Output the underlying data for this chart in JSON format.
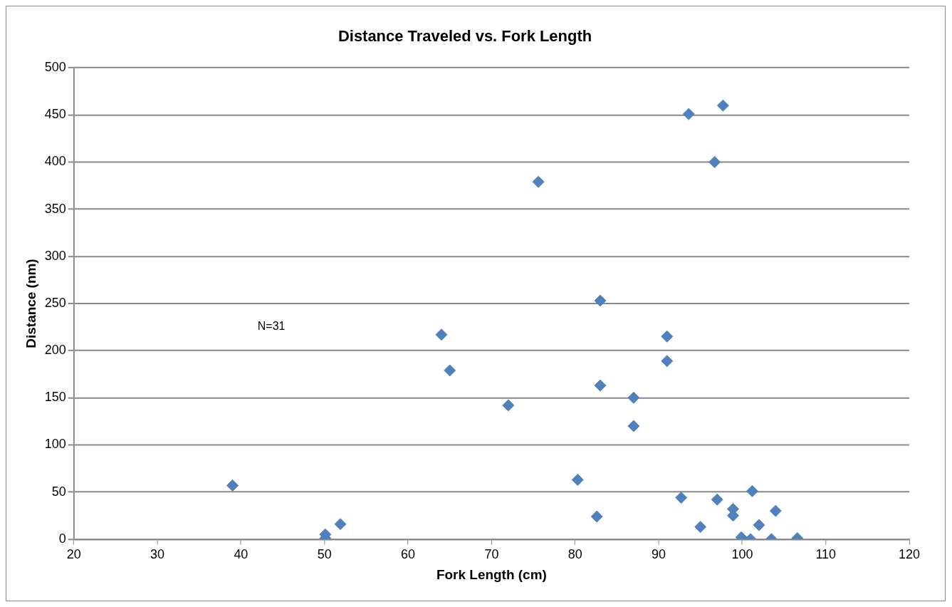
{
  "chart_data": {
    "type": "scatter",
    "title": "Distance Traveled vs. Fork Length",
    "xlabel": "Fork Length (cm)",
    "ylabel": "Distance (nm)",
    "annotations": [
      "N=31"
    ],
    "x": [
      39,
      50.1,
      50.1,
      51.9,
      64,
      65,
      72,
      75.6,
      80.3,
      82.6,
      83,
      83,
      87,
      87,
      91,
      91,
      92.7,
      93.6,
      95,
      96.7,
      97,
      97.7,
      98.9,
      98.9,
      99.9,
      101,
      101.2,
      102,
      103.5,
      104,
      106.6
    ],
    "series": [
      {
        "color": "#4f81bd",
        "values": [
          57,
          5,
          1,
          16,
          217,
          179,
          142,
          379,
          63,
          24,
          253,
          163,
          150,
          120,
          215,
          189,
          44,
          451,
          13,
          400,
          42,
          460,
          32,
          25,
          2,
          0,
          51,
          15,
          0,
          30,
          1
        ]
      }
    ],
    "xlim": [
      20,
      120
    ],
    "xticks": [
      20,
      30,
      40,
      50,
      60,
      70,
      80,
      90,
      100,
      110,
      120
    ],
    "ylim": [
      0,
      500
    ],
    "yticks": [
      0,
      50,
      100,
      150,
      200,
      250,
      300,
      350,
      400,
      450,
      500
    ],
    "grid": "y",
    "legend": false,
    "marker": "diamond"
  }
}
